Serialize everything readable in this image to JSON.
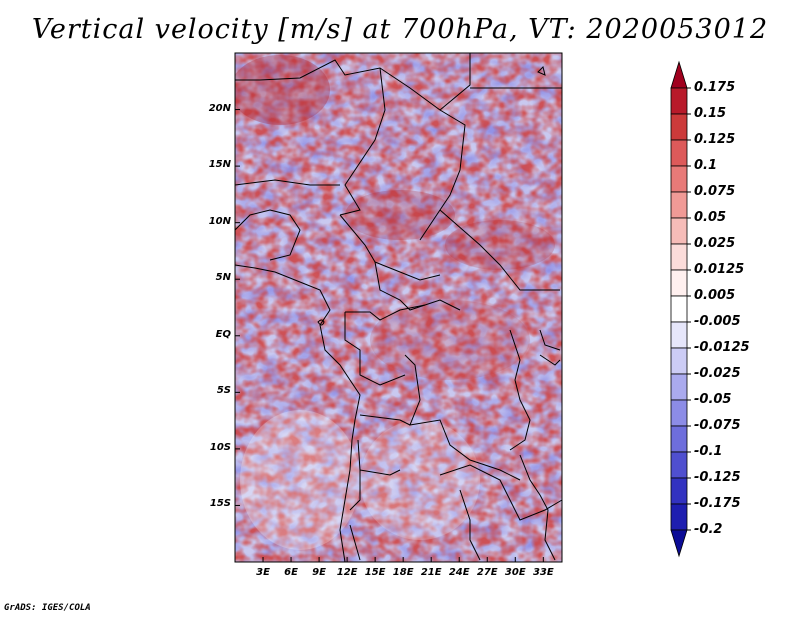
{
  "title": "Vertical velocity [m/s] at 700hPa, VT: 2020053012",
  "credit": "GrADS: IGES/COLA",
  "map": {
    "lat_labels": [
      "20N",
      "15N",
      "10N",
      "5N",
      "EQ",
      "5S",
      "10S",
      "15S"
    ],
    "lat_values": [
      20,
      15,
      10,
      5,
      0,
      -5,
      -10,
      -15
    ],
    "lon_labels": [
      "3E",
      "6E",
      "9E",
      "12E",
      "15E",
      "18E",
      "21E",
      "24E",
      "27E",
      "30E",
      "33E"
    ],
    "lon_values": [
      3,
      6,
      9,
      12,
      15,
      18,
      21,
      24,
      27,
      30,
      33
    ],
    "lat_range": [
      -20,
      25
    ],
    "lon_range": [
      0,
      35
    ]
  },
  "colorbar": {
    "labels": [
      "0.175",
      "0.15",
      "0.125",
      "0.1",
      "0.075",
      "0.05",
      "0.025",
      "0.0125",
      "0.005",
      "-0.005",
      "-0.0125",
      "-0.025",
      "-0.05",
      "-0.075",
      "-0.1",
      "-0.125",
      "-0.175",
      "-0.2"
    ],
    "colors": [
      "#a0001e",
      "#b81a2a",
      "#cc3a3a",
      "#dd5a5a",
      "#e87a78",
      "#f09a96",
      "#f6bcb8",
      "#fbdcda",
      "#fff0ef",
      "#ffffff",
      "#e6e6fa",
      "#ccccf5",
      "#aaaaee",
      "#8c8ce6",
      "#6e6edc",
      "#4f4fcf",
      "#3232c0",
      "#1e1eb0",
      "#0c0c96"
    ]
  }
}
